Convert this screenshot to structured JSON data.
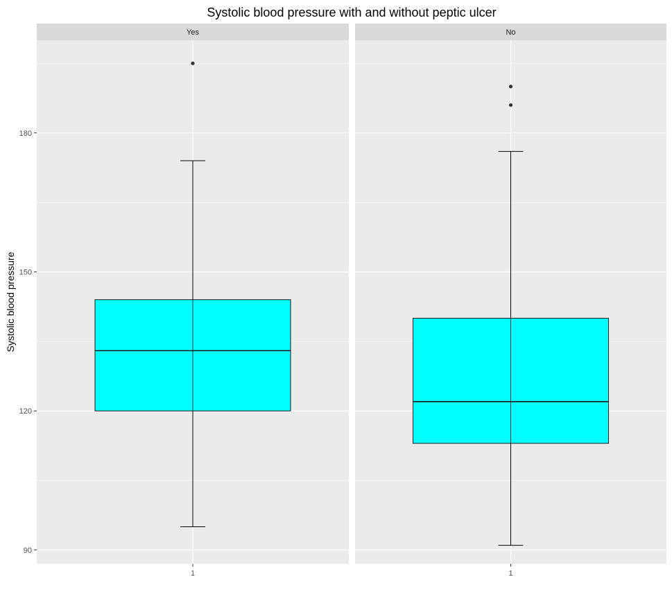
{
  "chart_data": {
    "type": "boxplot",
    "title": "Systolic blood pressure with and without peptic ulcer",
    "ylabel": "Systolic blood pressure",
    "xlabel": "",
    "ylim": [
      87,
      200
    ],
    "y_ticks": [
      90,
      120,
      150,
      180
    ],
    "x_tick_label": "1",
    "fill_color": "#00ffff",
    "panel_bg": "#ebebeb",
    "strip_bg": "#d9d9d9",
    "panels": [
      {
        "label": "Yes",
        "box": {
          "lower_whisker": 95,
          "q1": 120,
          "median": 133,
          "q3": 144,
          "upper_whisker": 174
        },
        "outliers": [
          195
        ]
      },
      {
        "label": "No",
        "box": {
          "lower_whisker": 91,
          "q1": 113,
          "median": 122,
          "q3": 140,
          "upper_whisker": 176
        },
        "outliers": [
          186,
          190
        ]
      }
    ]
  }
}
